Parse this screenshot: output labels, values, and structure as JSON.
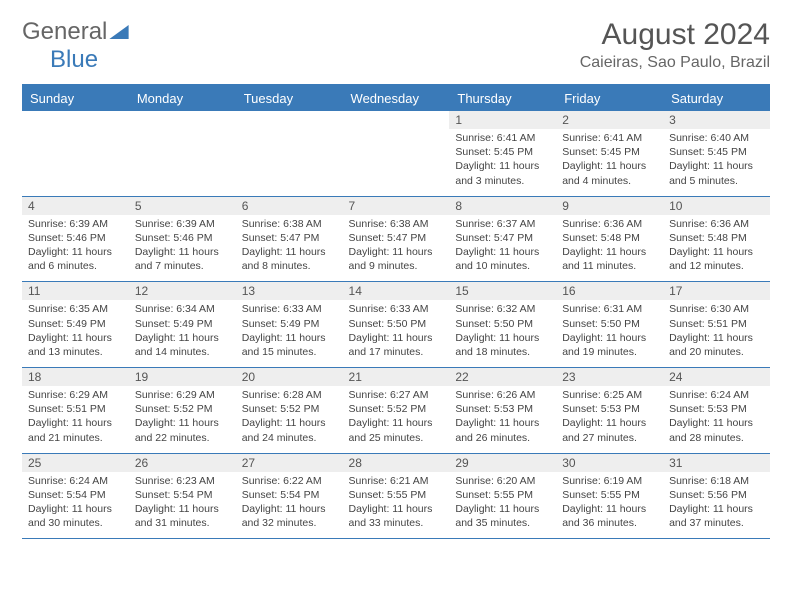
{
  "brand": {
    "general": "General",
    "blue": "Blue"
  },
  "header": {
    "month_title": "August 2024",
    "location": "Caieiras, Sao Paulo, Brazil"
  },
  "colors": {
    "accent": "#3a7ab8",
    "header_bg": "#3a7ab8",
    "daynum_bg": "#eeeeee",
    "text": "#444444"
  },
  "day_labels": [
    "Sunday",
    "Monday",
    "Tuesday",
    "Wednesday",
    "Thursday",
    "Friday",
    "Saturday"
  ],
  "weeks": [
    [
      null,
      null,
      null,
      null,
      {
        "n": "1",
        "sr": "Sunrise: 6:41 AM",
        "ss": "Sunset: 5:45 PM",
        "d1": "Daylight: 11 hours",
        "d2": "and 3 minutes."
      },
      {
        "n": "2",
        "sr": "Sunrise: 6:41 AM",
        "ss": "Sunset: 5:45 PM",
        "d1": "Daylight: 11 hours",
        "d2": "and 4 minutes."
      },
      {
        "n": "3",
        "sr": "Sunrise: 6:40 AM",
        "ss": "Sunset: 5:45 PM",
        "d1": "Daylight: 11 hours",
        "d2": "and 5 minutes."
      }
    ],
    [
      {
        "n": "4",
        "sr": "Sunrise: 6:39 AM",
        "ss": "Sunset: 5:46 PM",
        "d1": "Daylight: 11 hours",
        "d2": "and 6 minutes."
      },
      {
        "n": "5",
        "sr": "Sunrise: 6:39 AM",
        "ss": "Sunset: 5:46 PM",
        "d1": "Daylight: 11 hours",
        "d2": "and 7 minutes."
      },
      {
        "n": "6",
        "sr": "Sunrise: 6:38 AM",
        "ss": "Sunset: 5:47 PM",
        "d1": "Daylight: 11 hours",
        "d2": "and 8 minutes."
      },
      {
        "n": "7",
        "sr": "Sunrise: 6:38 AM",
        "ss": "Sunset: 5:47 PM",
        "d1": "Daylight: 11 hours",
        "d2": "and 9 minutes."
      },
      {
        "n": "8",
        "sr": "Sunrise: 6:37 AM",
        "ss": "Sunset: 5:47 PM",
        "d1": "Daylight: 11 hours",
        "d2": "and 10 minutes."
      },
      {
        "n": "9",
        "sr": "Sunrise: 6:36 AM",
        "ss": "Sunset: 5:48 PM",
        "d1": "Daylight: 11 hours",
        "d2": "and 11 minutes."
      },
      {
        "n": "10",
        "sr": "Sunrise: 6:36 AM",
        "ss": "Sunset: 5:48 PM",
        "d1": "Daylight: 11 hours",
        "d2": "and 12 minutes."
      }
    ],
    [
      {
        "n": "11",
        "sr": "Sunrise: 6:35 AM",
        "ss": "Sunset: 5:49 PM",
        "d1": "Daylight: 11 hours",
        "d2": "and 13 minutes."
      },
      {
        "n": "12",
        "sr": "Sunrise: 6:34 AM",
        "ss": "Sunset: 5:49 PM",
        "d1": "Daylight: 11 hours",
        "d2": "and 14 minutes."
      },
      {
        "n": "13",
        "sr": "Sunrise: 6:33 AM",
        "ss": "Sunset: 5:49 PM",
        "d1": "Daylight: 11 hours",
        "d2": "and 15 minutes."
      },
      {
        "n": "14",
        "sr": "Sunrise: 6:33 AM",
        "ss": "Sunset: 5:50 PM",
        "d1": "Daylight: 11 hours",
        "d2": "and 17 minutes."
      },
      {
        "n": "15",
        "sr": "Sunrise: 6:32 AM",
        "ss": "Sunset: 5:50 PM",
        "d1": "Daylight: 11 hours",
        "d2": "and 18 minutes."
      },
      {
        "n": "16",
        "sr": "Sunrise: 6:31 AM",
        "ss": "Sunset: 5:50 PM",
        "d1": "Daylight: 11 hours",
        "d2": "and 19 minutes."
      },
      {
        "n": "17",
        "sr": "Sunrise: 6:30 AM",
        "ss": "Sunset: 5:51 PM",
        "d1": "Daylight: 11 hours",
        "d2": "and 20 minutes."
      }
    ],
    [
      {
        "n": "18",
        "sr": "Sunrise: 6:29 AM",
        "ss": "Sunset: 5:51 PM",
        "d1": "Daylight: 11 hours",
        "d2": "and 21 minutes."
      },
      {
        "n": "19",
        "sr": "Sunrise: 6:29 AM",
        "ss": "Sunset: 5:52 PM",
        "d1": "Daylight: 11 hours",
        "d2": "and 22 minutes."
      },
      {
        "n": "20",
        "sr": "Sunrise: 6:28 AM",
        "ss": "Sunset: 5:52 PM",
        "d1": "Daylight: 11 hours",
        "d2": "and 24 minutes."
      },
      {
        "n": "21",
        "sr": "Sunrise: 6:27 AM",
        "ss": "Sunset: 5:52 PM",
        "d1": "Daylight: 11 hours",
        "d2": "and 25 minutes."
      },
      {
        "n": "22",
        "sr": "Sunrise: 6:26 AM",
        "ss": "Sunset: 5:53 PM",
        "d1": "Daylight: 11 hours",
        "d2": "and 26 minutes."
      },
      {
        "n": "23",
        "sr": "Sunrise: 6:25 AM",
        "ss": "Sunset: 5:53 PM",
        "d1": "Daylight: 11 hours",
        "d2": "and 27 minutes."
      },
      {
        "n": "24",
        "sr": "Sunrise: 6:24 AM",
        "ss": "Sunset: 5:53 PM",
        "d1": "Daylight: 11 hours",
        "d2": "and 28 minutes."
      }
    ],
    [
      {
        "n": "25",
        "sr": "Sunrise: 6:24 AM",
        "ss": "Sunset: 5:54 PM",
        "d1": "Daylight: 11 hours",
        "d2": "and 30 minutes."
      },
      {
        "n": "26",
        "sr": "Sunrise: 6:23 AM",
        "ss": "Sunset: 5:54 PM",
        "d1": "Daylight: 11 hours",
        "d2": "and 31 minutes."
      },
      {
        "n": "27",
        "sr": "Sunrise: 6:22 AM",
        "ss": "Sunset: 5:54 PM",
        "d1": "Daylight: 11 hours",
        "d2": "and 32 minutes."
      },
      {
        "n": "28",
        "sr": "Sunrise: 6:21 AM",
        "ss": "Sunset: 5:55 PM",
        "d1": "Daylight: 11 hours",
        "d2": "and 33 minutes."
      },
      {
        "n": "29",
        "sr": "Sunrise: 6:20 AM",
        "ss": "Sunset: 5:55 PM",
        "d1": "Daylight: 11 hours",
        "d2": "and 35 minutes."
      },
      {
        "n": "30",
        "sr": "Sunrise: 6:19 AM",
        "ss": "Sunset: 5:55 PM",
        "d1": "Daylight: 11 hours",
        "d2": "and 36 minutes."
      },
      {
        "n": "31",
        "sr": "Sunrise: 6:18 AM",
        "ss": "Sunset: 5:56 PM",
        "d1": "Daylight: 11 hours",
        "d2": "and 37 minutes."
      }
    ]
  ]
}
